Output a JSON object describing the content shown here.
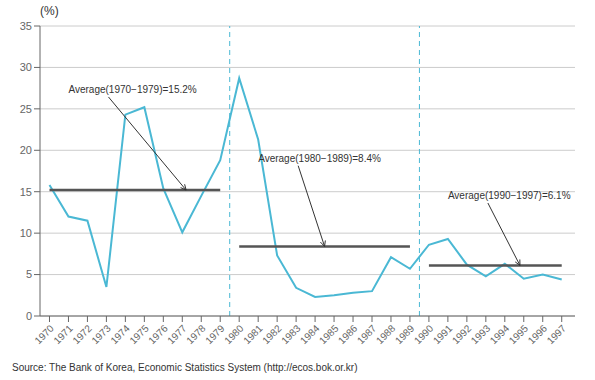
{
  "chart_data": {
    "type": "line",
    "x": [
      1970,
      1971,
      1972,
      1973,
      1974,
      1975,
      1976,
      1977,
      1978,
      1979,
      1980,
      1981,
      1982,
      1983,
      1984,
      1985,
      1986,
      1987,
      1988,
      1989,
      1990,
      1991,
      1992,
      1993,
      1994,
      1995,
      1996,
      1997
    ],
    "values": [
      15.8,
      12.0,
      11.5,
      3.5,
      24.3,
      25.2,
      15.4,
      10.1,
      14.5,
      18.8,
      28.7,
      21.3,
      7.3,
      3.4,
      2.3,
      2.5,
      2.8,
      3.0,
      7.1,
      5.7,
      8.6,
      9.3,
      6.2,
      4.8,
      6.3,
      4.5,
      5.0,
      4.4
    ],
    "color": "#4ab8d4",
    "y_label": "(%)",
    "xlim": [
      1969.5,
      1997.7
    ],
    "xticks": [
      1970,
      1971,
      1972,
      1973,
      1974,
      1975,
      1976,
      1977,
      1978,
      1979,
      1980,
      1981,
      1982,
      1983,
      1984,
      1985,
      1986,
      1987,
      1988,
      1989,
      1990,
      1991,
      1992,
      1993,
      1994,
      1995,
      1996,
      1997
    ],
    "ylim": [
      0,
      35
    ],
    "yticks": [
      0,
      5,
      10,
      15,
      20,
      25,
      30,
      35
    ],
    "grid": true,
    "reference_lines": [
      {
        "value": 15.2,
        "start": 1970,
        "end": 1979
      },
      {
        "value": 8.4,
        "start": 1980,
        "end": 1989
      },
      {
        "value": 6.1,
        "start": 1990,
        "end": 1997
      }
    ],
    "vlines": [
      1979.5,
      1989.5
    ],
    "annotations": [
      {
        "text": "Average(1970−1979)=15.2%",
        "x": 1977.2,
        "y": 15.2,
        "text_x": 1971.0,
        "text_y": 26.8
      },
      {
        "text": "Average(1980−1989)=8.4%",
        "x": 1984.5,
        "y": 8.4,
        "text_x": 1981.0,
        "text_y": 18.5
      },
      {
        "text": "Average(1990−1997)=6.1%",
        "x": 1994.8,
        "y": 6.1,
        "text_x": 1991.0,
        "text_y": 14.0
      }
    ],
    "source": "Source: The Bank of Korea, Economic Statistics System (http://ecos.bok.or.kr)"
  }
}
